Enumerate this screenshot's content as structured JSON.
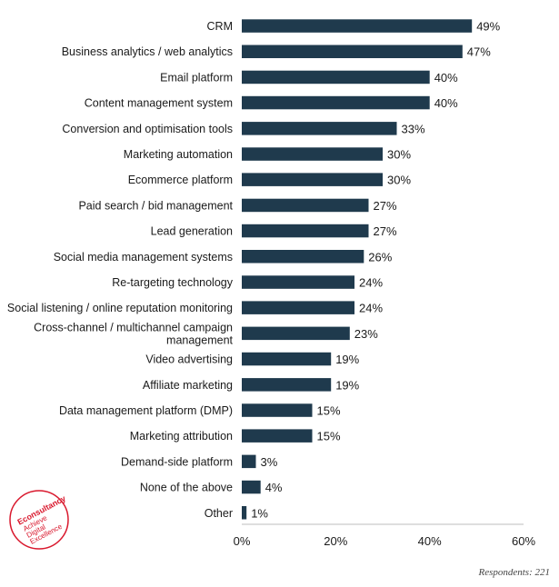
{
  "chart_data": {
    "type": "bar",
    "orientation": "horizontal",
    "title": "",
    "xlabel": "",
    "ylabel": "",
    "xlim": [
      0,
      60
    ],
    "ticks": [
      "0%",
      "20%",
      "40%",
      "60%"
    ],
    "tick_values": [
      0,
      20,
      40,
      60
    ],
    "value_suffix": "%",
    "grid": false,
    "bar_color": "#1f3a4d",
    "categories": [
      [
        "CRM"
      ],
      [
        "Business analytics / web analytics"
      ],
      [
        "Email platform"
      ],
      [
        "Content management system"
      ],
      [
        "Conversion and optimisation tools"
      ],
      [
        "Marketing automation"
      ],
      [
        "Ecommerce platform"
      ],
      [
        "Paid search / bid management"
      ],
      [
        "Lead generation"
      ],
      [
        "Social media management systems"
      ],
      [
        "Re-targeting technology"
      ],
      [
        "Social listening / online reputation monitoring"
      ],
      [
        "Cross-channel / multichannel campaign",
        "management"
      ],
      [
        "Video advertising"
      ],
      [
        "Affiliate marketing"
      ],
      [
        "Data management platform (DMP)"
      ],
      [
        "Marketing attribution"
      ],
      [
        "Demand-side platform"
      ],
      [
        "None of the above"
      ],
      [
        "Other"
      ]
    ],
    "values": [
      49,
      47,
      40,
      40,
      33,
      30,
      30,
      27,
      27,
      26,
      24,
      24,
      23,
      19,
      19,
      15,
      15,
      3,
      4,
      1
    ]
  },
  "footnote": "Respondents: 221",
  "logo": {
    "lines": [
      "Econsultancy",
      "Achieve",
      "Digital",
      "Excellence"
    ],
    "color": "#d9182d"
  }
}
